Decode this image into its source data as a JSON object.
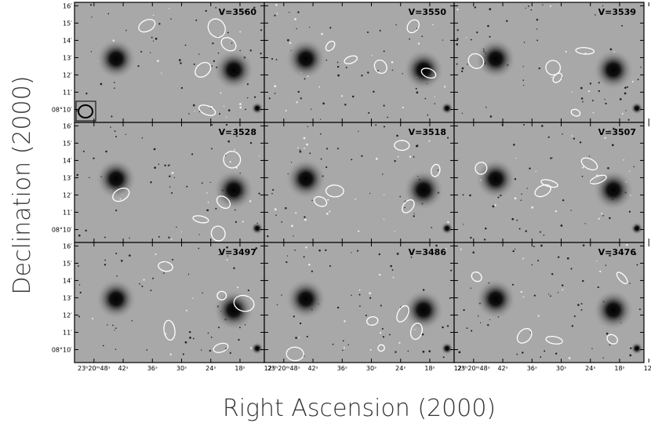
{
  "chart_data": {
    "type": "channel-maps",
    "xlabel": "Right Ascension (2000)",
    "ylabel": "Declination (2000)",
    "panels": [
      "V=3560",
      "V=3550",
      "V=3539",
      "V=3528",
      "V=3518",
      "V=3507",
      "V=3497",
      "V=3486",
      "V=3476"
    ],
    "columns": 3,
    "xlim": [
      52,
      13
    ],
    "xticks": [
      {
        "value": 48,
        "label": "23ʰ20ᵐ48ˢ"
      },
      {
        "value": 42,
        "label": "42ˢ"
      },
      {
        "value": 36,
        "label": "36ˢ"
      },
      {
        "value": 30,
        "label": "30ˢ"
      },
      {
        "value": 24,
        "label": "24ˢ"
      },
      {
        "value": 18,
        "label": "18ˢ"
      },
      {
        "value": 12,
        "label": "12ˢ"
      }
    ],
    "ylim": [
      9.25,
      16.2
    ],
    "yticks": [
      {
        "value": 10,
        "label": "08°10′"
      },
      {
        "value": 11,
        "label": "11′"
      },
      {
        "value": 12,
        "label": "12′"
      },
      {
        "value": 13,
        "label": "13′"
      },
      {
        "value": 14,
        "label": "14′"
      },
      {
        "value": 15,
        "label": "15′"
      },
      {
        "value": 16,
        "label": "16′"
      }
    ]
  }
}
